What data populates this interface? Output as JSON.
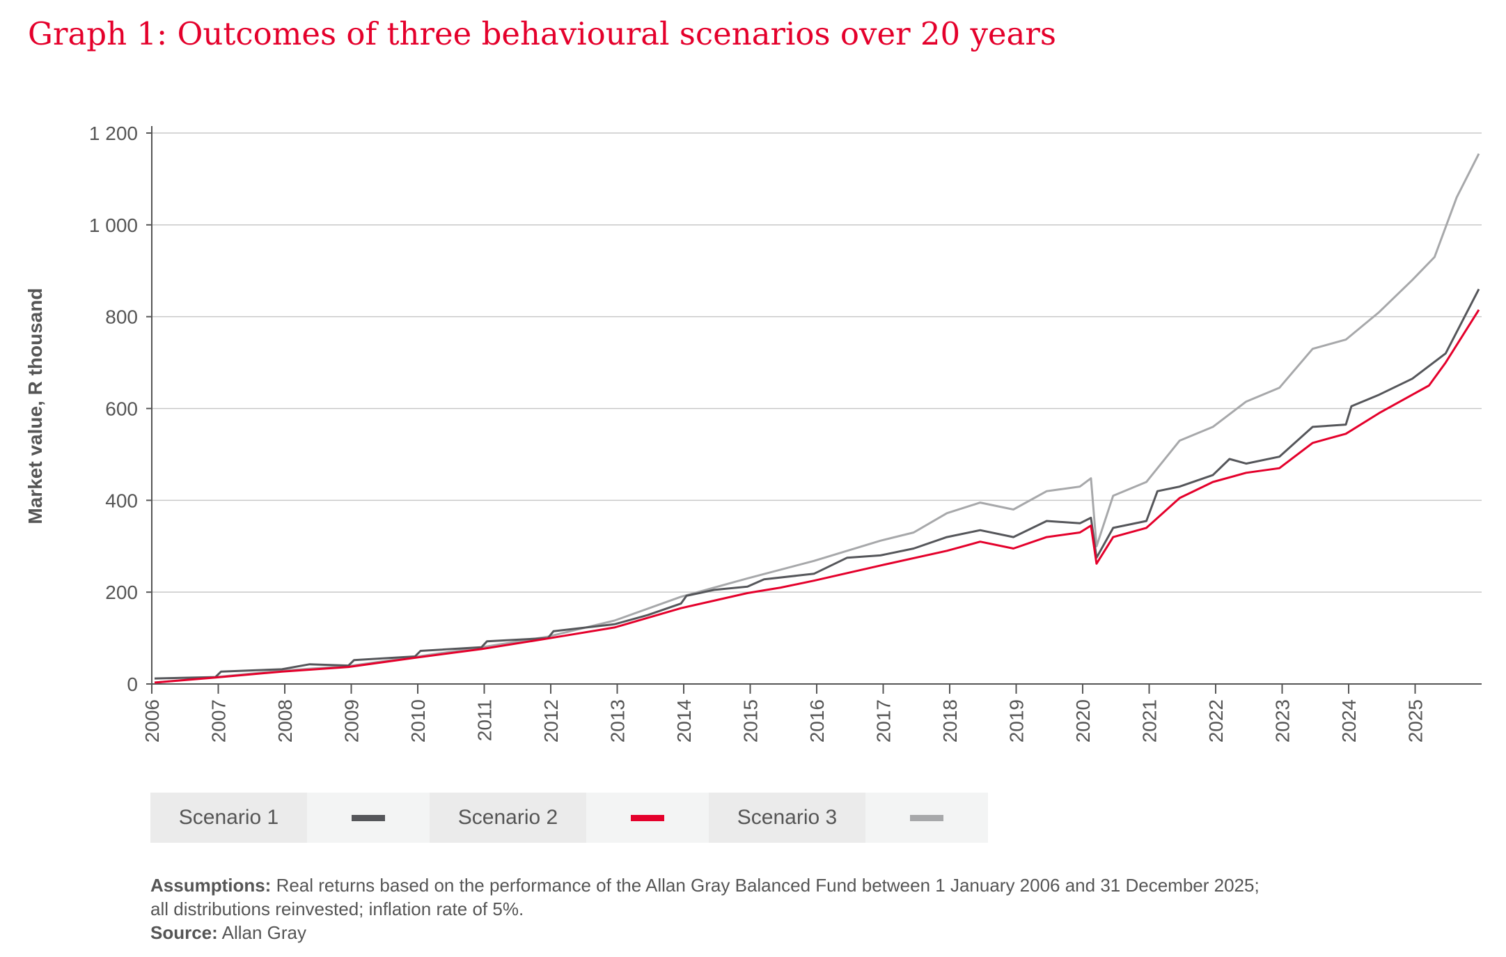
{
  "chart_data": {
    "type": "line",
    "title": "Graph 1: Outcomes of three behavioural scenarios over 20 years",
    "ylabel": "Market value, R thousand",
    "xlabel": "",
    "ylim": [
      0,
      1200
    ],
    "xlim": [
      "2006-01",
      "2025-12"
    ],
    "yticks": [
      0,
      200,
      400,
      600,
      800,
      1000,
      1200
    ],
    "ytick_labels": [
      "0",
      "200",
      "400",
      "600",
      "800",
      "1 000",
      "1 200"
    ],
    "xtick_labels": [
      "2006",
      "2007",
      "2008",
      "2009",
      "2010",
      "2011",
      "2012",
      "2013",
      "2014",
      "2015",
      "2016",
      "2017",
      "2018",
      "2019",
      "2020",
      "2021",
      "2022",
      "2023",
      "2024",
      "2025"
    ],
    "grid": "horizontal",
    "legend": "bottom",
    "series": [
      {
        "name": "Scenario 1",
        "color": "#55565a",
        "points": [
          [
            "2006-01",
            12
          ],
          [
            "2006-12",
            15
          ],
          [
            "2007-01",
            27
          ],
          [
            "2007-12",
            32
          ],
          [
            "2008-05",
            43
          ],
          [
            "2008-12",
            40
          ],
          [
            "2009-01",
            52
          ],
          [
            "2009-12",
            60
          ],
          [
            "2010-01",
            72
          ],
          [
            "2010-12",
            80
          ],
          [
            "2011-01",
            93
          ],
          [
            "2011-12",
            100
          ],
          [
            "2012-01",
            115
          ],
          [
            "2012-12",
            130
          ],
          [
            "2013-06",
            150
          ],
          [
            "2013-12",
            175
          ],
          [
            "2014-01",
            192
          ],
          [
            "2014-06",
            205
          ],
          [
            "2014-12",
            212
          ],
          [
            "2015-03",
            228
          ],
          [
            "2015-12",
            240
          ],
          [
            "2016-06",
            275
          ],
          [
            "2016-12",
            280
          ],
          [
            "2017-06",
            295
          ],
          [
            "2017-12",
            320
          ],
          [
            "2018-06",
            335
          ],
          [
            "2018-12",
            320
          ],
          [
            "2019-06",
            355
          ],
          [
            "2019-12",
            350
          ],
          [
            "2020-02",
            362
          ],
          [
            "2020-03",
            275
          ],
          [
            "2020-06",
            340
          ],
          [
            "2020-12",
            355
          ],
          [
            "2021-02",
            420
          ],
          [
            "2021-06",
            430
          ],
          [
            "2021-12",
            455
          ],
          [
            "2022-03",
            490
          ],
          [
            "2022-06",
            480
          ],
          [
            "2022-12",
            495
          ],
          [
            "2023-06",
            560
          ],
          [
            "2023-12",
            565
          ],
          [
            "2024-01",
            605
          ],
          [
            "2024-06",
            630
          ],
          [
            "2024-12",
            665
          ],
          [
            "2025-06",
            720
          ],
          [
            "2025-12",
            860
          ]
        ]
      },
      {
        "name": "Scenario 2",
        "color": "#e4002b",
        "points": [
          [
            "2006-01",
            3
          ],
          [
            "2006-12",
            14
          ],
          [
            "2007-12",
            27
          ],
          [
            "2008-12",
            37
          ],
          [
            "2009-12",
            57
          ],
          [
            "2010-12",
            76
          ],
          [
            "2011-12",
            99
          ],
          [
            "2012-12",
            123
          ],
          [
            "2013-12",
            165
          ],
          [
            "2014-12",
            198
          ],
          [
            "2015-06",
            210
          ],
          [
            "2015-12",
            225
          ],
          [
            "2016-12",
            258
          ],
          [
            "2017-12",
            290
          ],
          [
            "2018-06",
            310
          ],
          [
            "2018-12",
            295
          ],
          [
            "2019-06",
            320
          ],
          [
            "2019-12",
            330
          ],
          [
            "2020-02",
            345
          ],
          [
            "2020-03",
            262
          ],
          [
            "2020-06",
            320
          ],
          [
            "2020-12",
            340
          ],
          [
            "2021-06",
            405
          ],
          [
            "2021-12",
            440
          ],
          [
            "2022-06",
            460
          ],
          [
            "2022-12",
            470
          ],
          [
            "2023-06",
            525
          ],
          [
            "2023-12",
            545
          ],
          [
            "2024-06",
            590
          ],
          [
            "2024-12",
            630
          ],
          [
            "2025-03",
            650
          ],
          [
            "2025-06",
            700
          ],
          [
            "2025-12",
            815
          ]
        ]
      },
      {
        "name": "Scenario 3",
        "color": "#a7a8aa",
        "points": [
          [
            "2006-01",
            3
          ],
          [
            "2006-12",
            15
          ],
          [
            "2007-12",
            29
          ],
          [
            "2008-12",
            39
          ],
          [
            "2009-12",
            59
          ],
          [
            "2010-12",
            80
          ],
          [
            "2011-12",
            103
          ],
          [
            "2012-12",
            138
          ],
          [
            "2013-12",
            190
          ],
          [
            "2014-12",
            230
          ],
          [
            "2015-12",
            268
          ],
          [
            "2016-12",
            312
          ],
          [
            "2017-06",
            330
          ],
          [
            "2017-12",
            372
          ],
          [
            "2018-06",
            395
          ],
          [
            "2018-12",
            380
          ],
          [
            "2019-06",
            420
          ],
          [
            "2019-12",
            430
          ],
          [
            "2020-02",
            448
          ],
          [
            "2020-03",
            300
          ],
          [
            "2020-06",
            410
          ],
          [
            "2020-12",
            440
          ],
          [
            "2021-06",
            530
          ],
          [
            "2021-12",
            560
          ],
          [
            "2022-06",
            615
          ],
          [
            "2022-12",
            645
          ],
          [
            "2023-06",
            730
          ],
          [
            "2023-12",
            750
          ],
          [
            "2024-06",
            810
          ],
          [
            "2024-12",
            880
          ],
          [
            "2025-04",
            930
          ],
          [
            "2025-08",
            1060
          ],
          [
            "2025-12",
            1155
          ]
        ]
      }
    ]
  },
  "legend": {
    "items": [
      {
        "label": "Scenario 1",
        "color": "#55565a"
      },
      {
        "label": "Scenario 2",
        "color": "#e4002b"
      },
      {
        "label": "Scenario 3",
        "color": "#a7a8aa"
      }
    ]
  },
  "notes": {
    "assumptions_label": "Assumptions:",
    "assumptions_text": " Real returns based on the performance of the Allan Gray Balanced Fund between 1 January 2006 and 31 December 2025;",
    "assumptions_text2": "all distributions reinvested; inflation rate of 5%.",
    "source_label": "Source:",
    "source_text": " Allan Gray"
  }
}
